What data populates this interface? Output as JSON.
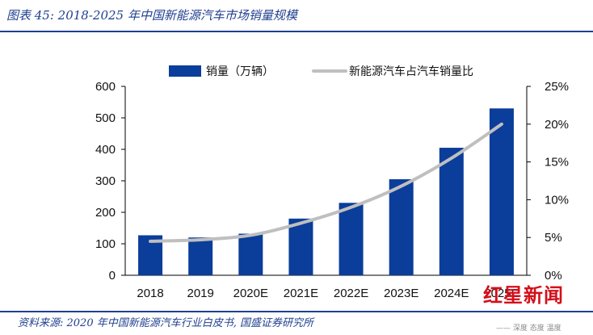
{
  "header": {
    "title": "图表 45:  2018-2025 年中国新能源汽车市场销量规模"
  },
  "footer": {
    "source": "资料来源:  2020 年中国新能源汽车行业白皮书,  国盛证券研究所"
  },
  "watermark": {
    "brand": "红星新闻",
    "tagline": "—— 深度 态度 温度"
  },
  "colors": {
    "bar": "#0b3d9a",
    "line": "#bfbfbf",
    "accent": "#1f3f8f",
    "watermark": "#d40f1a"
  },
  "chart_data": {
    "type": "bar",
    "categories": [
      "2018",
      "2019",
      "2020E",
      "2021E",
      "2022E",
      "2023E",
      "2024E",
      "2025E"
    ],
    "series": [
      {
        "name": "销量（万辆）",
        "type": "bar",
        "axis": "left",
        "values": [
          127,
          120,
          132,
          180,
          230,
          305,
          405,
          530
        ]
      },
      {
        "name": "新能源汽车占汽车销量比",
        "type": "line",
        "axis": "right",
        "values": [
          0.045,
          0.047,
          0.053,
          0.069,
          0.09,
          0.118,
          0.155,
          0.2
        ]
      }
    ],
    "y_left": {
      "ylim": [
        0,
        600
      ],
      "ticks": [
        "0",
        "100",
        "200",
        "300",
        "400",
        "500",
        "600"
      ]
    },
    "y_right": {
      "ylim": [
        0,
        0.25
      ],
      "ticks": [
        "0%",
        "5%",
        "10%",
        "15%",
        "20%",
        "25%"
      ]
    },
    "legend_position": "top",
    "grid": false
  }
}
